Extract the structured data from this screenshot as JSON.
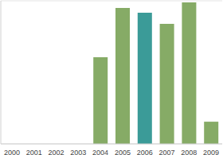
{
  "chart_data": {
    "type": "bar",
    "categories": [
      "2000",
      "2001",
      "2002",
      "2003",
      "2004",
      "2005",
      "2006",
      "2007",
      "2008",
      "2009"
    ],
    "values": [
      null,
      null,
      null,
      null,
      3.63,
      5.7,
      5.5,
      5.03,
      5.93,
      0.93
    ],
    "colors": [
      "#86ab66",
      "#86ab66",
      "#86ab66",
      "#86ab66",
      "#86ab66",
      "#86ab66",
      "#3b9b98",
      "#86ab66",
      "#86ab66",
      "#86ab66"
    ],
    "ylim": [
      0,
      6
    ],
    "yticks": [
      0,
      1,
      2,
      3,
      4,
      5,
      6
    ],
    "grid": true,
    "tick_labels": "x"
  }
}
